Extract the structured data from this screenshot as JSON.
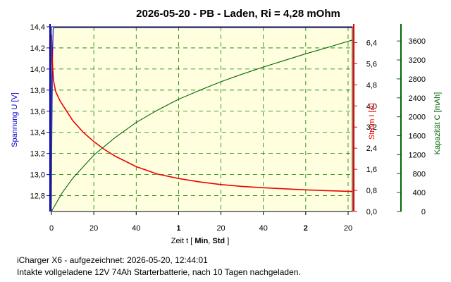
{
  "chart_data": {
    "type": "line",
    "title": "2026-05-20 - PB - Laden, Ri = 4,28 mOhm",
    "colors": {
      "background": "#ffffe0",
      "grid": "#008000",
      "voltage": "#0000cc",
      "current": "#ee0000",
      "capacity": "#006600"
    },
    "x_axis": {
      "label_prefix": "Zeit  t  [ ",
      "label_mid": "Min",
      "label_sep": ", ",
      "label_unit2": "Std",
      "label_suffix": " ]",
      "range_minutes": [
        0,
        142
      ],
      "ticks": [
        {
          "minute": 0,
          "label": "0",
          "bold": false
        },
        {
          "minute": 20,
          "label": "20",
          "bold": false
        },
        {
          "minute": 40,
          "label": "40",
          "bold": false
        },
        {
          "minute": 60,
          "label": "1",
          "bold": true
        },
        {
          "minute": 80,
          "label": "20",
          "bold": false
        },
        {
          "minute": 100,
          "label": "40",
          "bold": false
        },
        {
          "minute": 120,
          "label": "2",
          "bold": true
        },
        {
          "minute": 140,
          "label": "20",
          "bold": false
        }
      ]
    },
    "y_left": {
      "label": "Spannung  U  [V]",
      "range": [
        12.65,
        14.4
      ],
      "ticks": [
        12.8,
        13.0,
        13.2,
        13.4,
        13.6,
        13.8,
        14.0,
        14.2,
        14.4
      ],
      "tick_labels": [
        "12,8",
        "13,0",
        "13,2",
        "13,4",
        "13,6",
        "13,8",
        "14,0",
        "14,2",
        "14,4"
      ]
    },
    "y_right1": {
      "label": "Strom  I  [A]",
      "range": [
        0,
        7.0
      ],
      "ticks": [
        0,
        0.8,
        1.6,
        2.4,
        3.2,
        4.0,
        4.8,
        5.6,
        6.4
      ],
      "tick_labels": [
        "0,0",
        "0,8",
        "1,6",
        "2,4",
        "3,2",
        "4,0",
        "4,8",
        "5,6",
        "6,4"
      ]
    },
    "y_right2": {
      "label": "Kapazität  C  [mAh]",
      "range": [
        0,
        3900
      ],
      "ticks": [
        0,
        400,
        800,
        1200,
        1600,
        2000,
        2400,
        2800,
        3200,
        3600
      ],
      "tick_labels": [
        "0",
        "400",
        "800",
        "1200",
        "1600",
        "2000",
        "2400",
        "2800",
        "3200",
        "3600"
      ]
    },
    "series": [
      {
        "name": "Spannung",
        "axis": "left",
        "x": [
          0,
          0.2,
          0.4,
          0.6,
          0.8,
          1,
          2,
          5,
          20,
          60,
          100,
          142
        ],
        "y": [
          12.65,
          13.4,
          13.9,
          14.2,
          14.38,
          14.39,
          14.39,
          14.39,
          14.39,
          14.39,
          14.39,
          14.39
        ]
      },
      {
        "name": "Strom",
        "axis": "right1",
        "x": [
          0,
          0.3,
          0.7,
          1,
          2,
          4,
          6,
          8,
          10,
          15,
          20,
          25,
          30,
          40,
          50,
          60,
          70,
          80,
          90,
          100,
          110,
          120,
          130,
          142
        ],
        "y": [
          6.7,
          5.9,
          5.3,
          4.95,
          4.55,
          4.2,
          3.95,
          3.7,
          3.45,
          3.0,
          2.65,
          2.35,
          2.1,
          1.7,
          1.42,
          1.25,
          1.12,
          1.02,
          0.95,
          0.9,
          0.86,
          0.82,
          0.79,
          0.76
        ]
      },
      {
        "name": "Kapazität",
        "axis": "right2",
        "x": [
          0,
          5,
          10,
          20,
          30,
          40,
          50,
          60,
          70,
          80,
          90,
          100,
          110,
          120,
          130,
          142
        ],
        "y": [
          0,
          390,
          700,
          1190,
          1560,
          1880,
          2140,
          2370,
          2560,
          2740,
          2900,
          3050,
          3190,
          3330,
          3460,
          3620
        ]
      }
    ]
  },
  "footer": {
    "line1": "iCharger X6 - aufgezeichnet: 2026-05-20, 12:44:01",
    "line2": "Intakte vollgeladene 12V 74Ah Starterbatterie, nach 10 Tagen nachgeladen."
  }
}
